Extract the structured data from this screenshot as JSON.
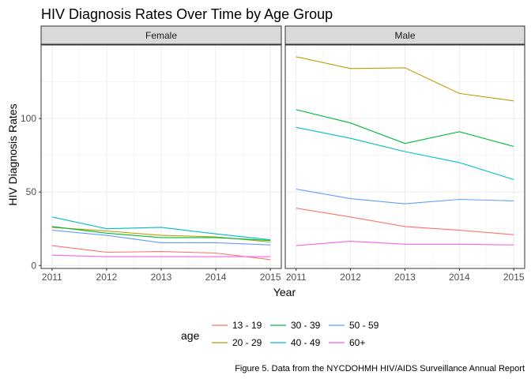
{
  "chart_data": {
    "type": "line",
    "title": "HIV Diagnosis Rates Over Time by Age Group",
    "xlabel": "Year",
    "ylabel": "HIV Diagnosis Rates",
    "x": [
      2011,
      2012,
      2013,
      2014,
      2015
    ],
    "x_ticks": [
      "2011",
      "2012",
      "2013",
      "2014",
      "2015"
    ],
    "y_ticks": [
      "0",
      "50",
      "100"
    ],
    "ylim": [
      -2,
      150
    ],
    "grid": true,
    "facets": [
      "Female",
      "Male"
    ],
    "legend": {
      "title": "age",
      "position": "bottom",
      "entries": [
        "13 - 19",
        "20 - 29",
        "30 - 39",
        "40 - 49",
        "50 - 59",
        "60+"
      ]
    },
    "caption": "Figure 5. Data from the NYCDOHMH HIV/AIDS Surveillance Annual Report",
    "colors": {
      "13 - 19": "#F8766D",
      "20 - 29": "#B79F00",
      "30 - 39": "#00BA38",
      "40 - 49": "#00BFC4",
      "50 - 59": "#619CFF",
      "60+": "#F564E3"
    },
    "series": [
      {
        "facet": "Female",
        "name": "13 - 19",
        "values": [
          13.5,
          9,
          9.5,
          8.5,
          4
        ]
      },
      {
        "facet": "Female",
        "name": "20 - 29",
        "values": [
          26,
          23.5,
          20.5,
          19.5,
          16
        ]
      },
      {
        "facet": "Female",
        "name": "30 - 39",
        "values": [
          26.5,
          22,
          19,
          19,
          17
        ]
      },
      {
        "facet": "Female",
        "name": "40 - 49",
        "values": [
          33,
          25,
          26,
          21.5,
          17.5
        ]
      },
      {
        "facet": "Female",
        "name": "50 - 59",
        "values": [
          24,
          20.5,
          15.5,
          15.5,
          14
        ]
      },
      {
        "facet": "Female",
        "name": "60+",
        "values": [
          7,
          6,
          6,
          6,
          6
        ]
      },
      {
        "facet": "Male",
        "name": "13 - 19",
        "values": [
          39,
          33,
          26.5,
          24,
          21
        ]
      },
      {
        "facet": "Male",
        "name": "20 - 29",
        "values": [
          142,
          134,
          134.5,
          117,
          112
        ]
      },
      {
        "facet": "Male",
        "name": "30 - 39",
        "values": [
          106,
          97,
          83,
          91,
          81
        ]
      },
      {
        "facet": "Male",
        "name": "40 - 49",
        "values": [
          94,
          86.5,
          77.5,
          70,
          58.5
        ]
      },
      {
        "facet": "Male",
        "name": "50 - 59",
        "values": [
          52,
          45.5,
          42,
          45,
          44
        ]
      },
      {
        "facet": "Male",
        "name": "60+",
        "values": [
          13.5,
          16.5,
          14.5,
          14.5,
          14
        ]
      }
    ]
  }
}
